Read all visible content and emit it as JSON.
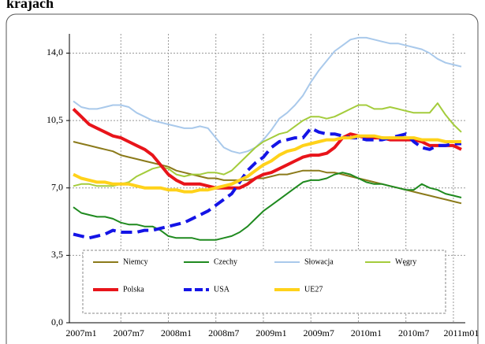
{
  "chart_data": {
    "type": "line",
    "title": "krajach",
    "categories": [
      "2007m1",
      null,
      null,
      null,
      null,
      null,
      "2007m7",
      null,
      null,
      null,
      null,
      null,
      "2008m1",
      null,
      null,
      null,
      null,
      null,
      "2008m7",
      null,
      null,
      null,
      null,
      null,
      "2009m1",
      null,
      null,
      null,
      null,
      null,
      "2009m7",
      null,
      null,
      null,
      null,
      null,
      "2010m1",
      null,
      null,
      null,
      null,
      null,
      "2010m7",
      null,
      null,
      null,
      null,
      null,
      "2011m01",
      null
    ],
    "ylim": [
      0,
      15
    ],
    "yticks": [
      {
        "value": 0,
        "label": "0,0"
      },
      {
        "value": 3.5,
        "label": "3,5"
      },
      {
        "value": 7,
        "label": "7,0"
      },
      {
        "value": 10.5,
        "label": "10,5"
      },
      {
        "value": 14,
        "label": "14,0"
      }
    ],
    "grid": true,
    "legend": "bottom",
    "series": [
      {
        "name": "Niemcy",
        "color": "#8b7a1a",
        "line_width": 2,
        "values": [
          9.4,
          9.3,
          9.2,
          9.1,
          9.0,
          8.9,
          8.7,
          8.6,
          8.5,
          8.4,
          8.3,
          8.2,
          8.1,
          7.9,
          7.8,
          7.7,
          7.6,
          7.5,
          7.5,
          7.4,
          7.4,
          7.4,
          7.4,
          7.5,
          7.5,
          7.6,
          7.7,
          7.7,
          7.8,
          7.9,
          7.9,
          7.9,
          7.8,
          7.8,
          7.7,
          7.6,
          7.5,
          7.4,
          7.3,
          7.2,
          7.1,
          7.0,
          6.9,
          6.8,
          6.7,
          6.6,
          6.5,
          6.4,
          6.3,
          6.2
        ]
      },
      {
        "name": "Czechy",
        "color": "#1f8a1f",
        "line_width": 2,
        "values": [
          6.0,
          5.7,
          5.6,
          5.5,
          5.5,
          5.4,
          5.2,
          5.1,
          5.1,
          5.0,
          5.0,
          4.8,
          4.5,
          4.4,
          4.4,
          4.4,
          4.3,
          4.3,
          4.3,
          4.4,
          4.5,
          4.7,
          5.0,
          5.4,
          5.8,
          6.1,
          6.4,
          6.7,
          7.0,
          7.3,
          7.4,
          7.4,
          7.5,
          7.7,
          7.8,
          7.7,
          7.5,
          7.3,
          7.2,
          7.2,
          7.1,
          7.0,
          6.9,
          6.9,
          7.2,
          7.0,
          6.9,
          6.7,
          6.6,
          6.5
        ]
      },
      {
        "name": "Słowacja",
        "color": "#a9c9eb",
        "line_width": 2,
        "values": [
          11.5,
          11.2,
          11.1,
          11.1,
          11.2,
          11.3,
          11.3,
          11.2,
          10.9,
          10.7,
          10.5,
          10.4,
          10.3,
          10.2,
          10.1,
          10.1,
          10.2,
          10.1,
          9.6,
          9.1,
          8.9,
          8.8,
          8.9,
          9.1,
          9.5,
          10.0,
          10.6,
          10.9,
          11.3,
          11.8,
          12.5,
          13.1,
          13.6,
          14.1,
          14.4,
          14.7,
          14.8,
          14.8,
          14.7,
          14.6,
          14.5,
          14.5,
          14.4,
          14.3,
          14.2,
          14.0,
          13.7,
          13.5,
          13.4,
          13.3
        ]
      },
      {
        "name": "Węgry",
        "color": "#a4cc3c",
        "line_width": 2,
        "values": [
          7.1,
          7.2,
          7.2,
          7.1,
          7.1,
          7.1,
          7.2,
          7.3,
          7.6,
          7.8,
          8.0,
          8.1,
          8.0,
          7.7,
          7.6,
          7.7,
          7.7,
          7.8,
          7.8,
          7.7,
          7.9,
          8.3,
          8.7,
          9.1,
          9.4,
          9.6,
          9.8,
          9.9,
          10.2,
          10.5,
          10.7,
          10.7,
          10.6,
          10.7,
          10.9,
          11.1,
          11.3,
          11.3,
          11.1,
          11.1,
          11.2,
          11.1,
          11.0,
          10.9,
          10.9,
          10.9,
          11.4,
          10.8,
          10.3,
          9.9
        ]
      },
      {
        "name": "Polska",
        "color": "#e8141a",
        "line_width": 4,
        "values": [
          11.1,
          10.7,
          10.3,
          10.1,
          9.9,
          9.7,
          9.6,
          9.4,
          9.2,
          9.0,
          8.7,
          8.2,
          7.7,
          7.4,
          7.2,
          7.2,
          7.2,
          7.1,
          7.0,
          7.0,
          7.0,
          7.0,
          7.2,
          7.5,
          7.7,
          7.8,
          8.0,
          8.2,
          8.4,
          8.6,
          8.7,
          8.7,
          8.8,
          9.1,
          9.6,
          9.8,
          9.7,
          9.6,
          9.6,
          9.6,
          9.5,
          9.5,
          9.5,
          9.5,
          9.4,
          9.2,
          9.2,
          9.2,
          9.2,
          9.0
        ]
      },
      {
        "name": "USA",
        "color": "#1414e6",
        "line_width": 4,
        "dashed": true,
        "values": [
          4.6,
          4.5,
          4.4,
          4.5,
          4.6,
          4.8,
          4.7,
          4.7,
          4.7,
          4.8,
          4.8,
          4.9,
          5.0,
          5.1,
          5.2,
          5.4,
          5.6,
          5.8,
          6.1,
          6.4,
          6.7,
          7.3,
          7.9,
          8.3,
          8.6,
          9.1,
          9.4,
          9.5,
          9.6,
          9.6,
          10.1,
          9.9,
          9.8,
          9.8,
          9.7,
          9.6,
          9.6,
          9.5,
          9.5,
          9.5,
          9.6,
          9.7,
          9.8,
          9.4,
          9.1,
          9.0,
          9.2,
          9.2,
          9.3,
          9.3
        ]
      },
      {
        "name": "UE27",
        "color": "#ffd21a",
        "line_width": 4,
        "values": [
          7.7,
          7.5,
          7.4,
          7.3,
          7.3,
          7.2,
          7.2,
          7.2,
          7.1,
          7.0,
          7.0,
          7.0,
          6.9,
          6.9,
          6.8,
          6.8,
          6.9,
          6.9,
          7.0,
          7.1,
          7.2,
          7.4,
          7.6,
          7.9,
          8.2,
          8.4,
          8.7,
          8.9,
          9.0,
          9.2,
          9.3,
          9.4,
          9.5,
          9.5,
          9.6,
          9.6,
          9.7,
          9.7,
          9.7,
          9.6,
          9.6,
          9.6,
          9.6,
          9.6,
          9.5,
          9.5,
          9.5,
          9.4,
          9.4,
          9.4
        ]
      }
    ]
  }
}
